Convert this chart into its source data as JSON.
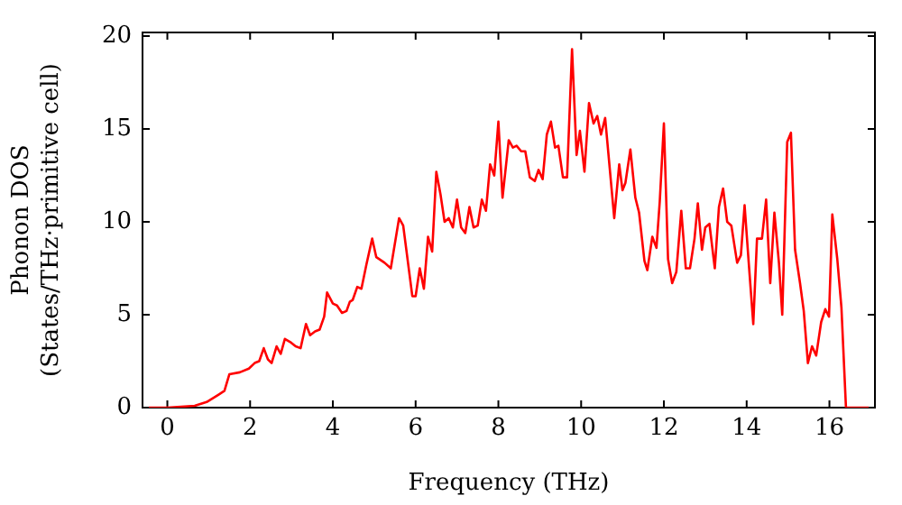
{
  "chart_data": {
    "type": "line",
    "xlabel": "Frequency (THz)",
    "ylabel": "Phonon DOS\n(States/THz·primitive cell)",
    "xlim": [
      -0.6,
      17.1
    ],
    "ylim": [
      0,
      20.2
    ],
    "xticks": [
      0,
      2,
      4,
      6,
      8,
      10,
      12,
      14,
      16
    ],
    "yticks": [
      0,
      5,
      10,
      15,
      20
    ],
    "grid": false,
    "legend": false,
    "marker": "none",
    "line_style": "solid",
    "series": [
      {
        "color": "#ff0000",
        "x": [
          -0.45,
          0,
          0.66,
          0.95,
          1.24,
          1.38,
          1.5,
          1.75,
          1.97,
          2.11,
          2.22,
          2.33,
          2.43,
          2.52,
          2.64,
          2.74,
          2.84,
          2.99,
          3.1,
          3.22,
          3.35,
          3.45,
          3.57,
          3.68,
          3.79,
          3.86,
          4.0,
          4.1,
          4.22,
          4.33,
          4.41,
          4.48,
          4.59,
          4.69,
          4.81,
          4.95,
          5.05,
          5.25,
          5.4,
          5.6,
          5.7,
          5.92,
          6.0,
          6.1,
          6.2,
          6.3,
          6.4,
          6.5,
          6.6,
          6.7,
          6.8,
          6.9,
          7.0,
          7.1,
          7.2,
          7.3,
          7.4,
          7.5,
          7.6,
          7.7,
          7.8,
          7.9,
          8.0,
          8.1,
          8.25,
          8.35,
          8.44,
          8.55,
          8.65,
          8.76,
          8.88,
          8.97,
          9.07,
          9.17,
          9.27,
          9.37,
          9.45,
          9.56,
          9.66,
          9.78,
          9.89,
          9.97,
          10.08,
          10.19,
          10.3,
          10.39,
          10.48,
          10.58,
          10.8,
          10.92,
          11.0,
          11.07,
          11.19,
          11.31,
          11.4,
          11.53,
          11.6,
          11.72,
          11.82,
          11.9,
          12.0,
          12.1,
          12.2,
          12.3,
          12.42,
          12.53,
          12.63,
          12.74,
          12.82,
          12.92,
          13.0,
          13.1,
          13.23,
          13.33,
          13.43,
          13.53,
          13.63,
          13.77,
          13.86,
          13.95,
          14.05,
          14.16,
          14.25,
          14.37,
          14.47,
          14.57,
          14.67,
          14.78,
          14.86,
          14.98,
          15.07,
          15.17,
          15.29,
          15.38,
          15.48,
          15.58,
          15.68,
          15.8,
          15.9,
          15.99,
          16.07,
          16.19,
          16.29,
          16.4,
          16.95
        ],
        "values": [
          0,
          0,
          0.1,
          0.3,
          0.7,
          0.9,
          1.8,
          1.9,
          2.1,
          2.4,
          2.5,
          3.2,
          2.6,
          2.4,
          3.3,
          2.9,
          3.7,
          3.5,
          3.3,
          3.2,
          4.5,
          3.9,
          4.1,
          4.2,
          4.9,
          6.2,
          5.6,
          5.5,
          5.1,
          5.2,
          5.7,
          5.8,
          6.5,
          6.4,
          7.7,
          9.1,
          8.1,
          7.8,
          7.5,
          10.2,
          9.8,
          6.0,
          6.0,
          7.5,
          6.4,
          9.2,
          8.4,
          12.7,
          11.5,
          10.0,
          10.2,
          9.7,
          11.2,
          9.7,
          9.4,
          10.8,
          9.7,
          9.8,
          11.2,
          10.6,
          13.1,
          12.5,
          15.4,
          11.3,
          14.4,
          14.0,
          14.1,
          13.8,
          13.8,
          12.4,
          12.2,
          12.8,
          12.3,
          14.7,
          15.4,
          14.0,
          14.1,
          12.4,
          12.4,
          19.3,
          13.6,
          14.9,
          12.7,
          16.4,
          15.3,
          15.7,
          14.7,
          15.6,
          10.2,
          13.1,
          11.7,
          12.1,
          13.9,
          11.3,
          10.5,
          7.9,
          7.4,
          9.2,
          8.6,
          11.1,
          15.3,
          8.0,
          6.7,
          7.3,
          10.6,
          7.5,
          7.5,
          9.1,
          11.0,
          8.5,
          9.7,
          9.9,
          7.5,
          10.8,
          11.8,
          10.0,
          9.8,
          7.8,
          8.2,
          10.9,
          7.8,
          4.5,
          9.1,
          9.1,
          11.2,
          6.7,
          10.5,
          7.8,
          5.0,
          14.3,
          14.8,
          8.5,
          6.7,
          5.2,
          2.4,
          3.3,
          2.8,
          4.6,
          5.3,
          4.9,
          10.4,
          8.0,
          5.4,
          0,
          0
        ]
      }
    ]
  }
}
